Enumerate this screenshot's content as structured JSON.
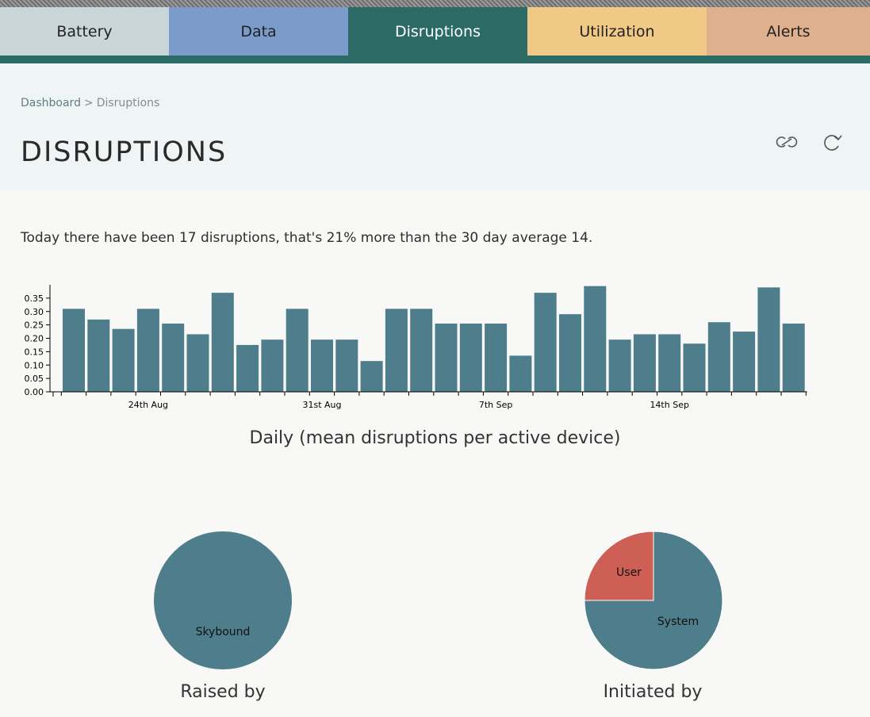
{
  "tabs": [
    {
      "label": "Battery",
      "color": "#c8d6d9"
    },
    {
      "label": "Data",
      "color": "#7b9bca"
    },
    {
      "label": "Disruptions",
      "color": "#2c6a66",
      "active": true
    },
    {
      "label": "Utilization",
      "color": "#f1c987"
    },
    {
      "label": "Alerts",
      "color": "#dfb08e"
    }
  ],
  "breadcrumb": {
    "parent": "Dashboard",
    "separator": ">",
    "current": "Disruptions"
  },
  "page": {
    "title": "DISRUPTIONS"
  },
  "header_icons": {
    "link": "link-icon",
    "refresh": "refresh-icon"
  },
  "summary": "Today there have been 17 disruptions, that's 21% more than the 30 day average 14.",
  "colors": {
    "bar": "#4e7e8b",
    "pie_primary": "#4e7e8b",
    "pie_secondary": "#cd5f55"
  },
  "chart_data": [
    {
      "type": "bar",
      "title": "Daily (mean disruptions per active device)",
      "x_tick_labels": [
        "24th Aug",
        "31st Aug",
        "7th Sep",
        "14th Sep"
      ],
      "ylim": [
        0,
        0.4
      ],
      "y_ticks": [
        "0.00",
        "0.05",
        "0.10",
        "0.15",
        "0.20",
        "0.25",
        "0.30",
        "0.35"
      ],
      "values": [
        0.31,
        0.27,
        0.235,
        0.31,
        0.255,
        0.215,
        0.37,
        0.175,
        0.195,
        0.31,
        0.195,
        0.195,
        0.115,
        0.31,
        0.31,
        0.255,
        0.255,
        0.255,
        0.135,
        0.37,
        0.29,
        0.395,
        0.195,
        0.215,
        0.215,
        0.18,
        0.26,
        0.225,
        0.39,
        0.255
      ],
      "tick_label_bar_index": [
        3,
        10,
        17,
        24
      ]
    },
    {
      "type": "pie",
      "title": "Raised by",
      "slices": [
        {
          "label": "Skybound",
          "value": 100
        }
      ]
    },
    {
      "type": "pie",
      "title": "Initiated by",
      "slices": [
        {
          "label": "System",
          "value": 75
        },
        {
          "label": "User",
          "value": 25
        }
      ]
    }
  ]
}
